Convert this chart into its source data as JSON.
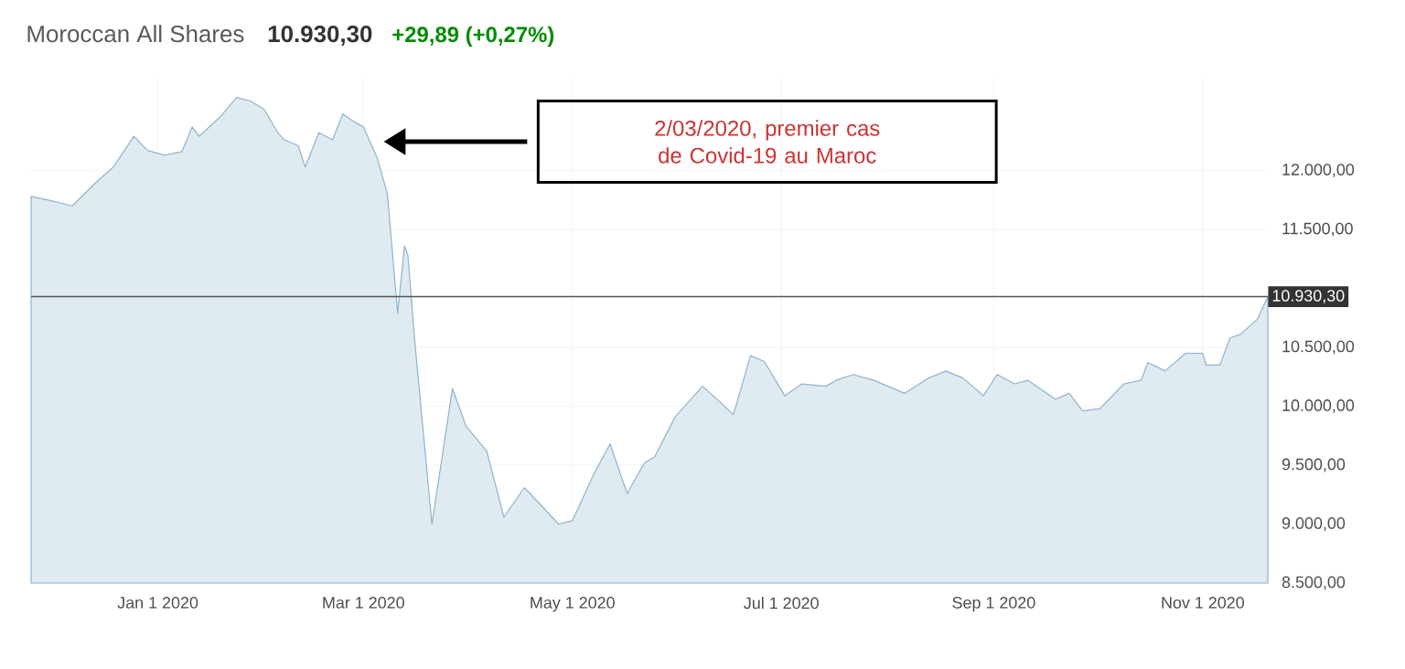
{
  "chart_data": {
    "type": "area",
    "title": "Moroccan All Shares",
    "subtitle": "10.930,30",
    "annotations": [
      "+29,89 (+0,27%)",
      "2/03/2020, premier cas de Covid-19 au Maroc"
    ],
    "x": [
      "2019-11-25",
      "2019-11-30",
      "2019-12-07",
      "2019-12-14",
      "2019-12-19",
      "2019-12-25",
      "2019-12-29",
      "2020-01-03",
      "2020-01-08",
      "2020-01-11",
      "2020-01-13",
      "2020-01-19",
      "2020-01-24",
      "2020-01-28",
      "2020-02-01",
      "2020-02-05",
      "2020-02-07",
      "2020-02-11",
      "2020-02-13",
      "2020-02-17",
      "2020-02-21",
      "2020-02-24",
      "2020-02-27",
      "2020-03-01",
      "2020-03-05",
      "2020-03-08",
      "2020-03-11",
      "2020-03-13",
      "2020-03-14",
      "2020-03-16",
      "2020-03-21",
      "2020-03-27",
      "2020-03-31",
      "2020-04-06",
      "2020-04-11",
      "2020-04-17",
      "2020-04-27",
      "2020-05-01",
      "2020-05-07",
      "2020-05-12",
      "2020-05-17",
      "2020-05-22",
      "2020-05-25",
      "2020-05-31",
      "2020-06-08",
      "2020-06-13",
      "2020-06-17",
      "2020-06-22",
      "2020-06-26",
      "2020-07-02",
      "2020-07-07",
      "2020-07-14",
      "2020-07-17",
      "2020-07-22",
      "2020-07-28",
      "2020-08-06",
      "2020-08-13",
      "2020-08-18",
      "2020-08-23",
      "2020-08-29",
      "2020-09-02",
      "2020-09-07",
      "2020-09-11",
      "2020-09-19",
      "2020-09-23",
      "2020-09-27",
      "2020-10-02",
      "2020-10-09",
      "2020-10-14",
      "2020-10-16",
      "2020-10-21",
      "2020-10-27",
      "2020-11-01",
      "2020-11-02",
      "2020-11-06",
      "2020-11-09",
      "2020-11-12",
      "2020-11-17",
      "2020-11-20"
    ],
    "series": [
      {
        "color": "#8fb3cc",
        "values": [
          11780,
          11750,
          11700,
          11900,
          12030,
          12290,
          12170,
          12130,
          12160,
          12370,
          12290,
          12450,
          12620,
          12590,
          12520,
          12320,
          12260,
          12210,
          12030,
          12320,
          12260,
          12480,
          12420,
          12370,
          12110,
          11800,
          10790,
          11360,
          11280,
          10550,
          9000,
          10150,
          9830,
          9620,
          9060,
          9310,
          9000,
          9030,
          9410,
          9680,
          9260,
          9520,
          9570,
          9910,
          10170,
          10040,
          9930,
          10430,
          10380,
          10090,
          10190,
          10170,
          10220,
          10270,
          10220,
          10110,
          10240,
          10300,
          10240,
          10090,
          10270,
          10190,
          10220,
          10060,
          10110,
          9960,
          9980,
          10190,
          10220,
          10370,
          10300,
          10450,
          10450,
          10350,
          10350,
          10580,
          10610,
          10740,
          10930
        ]
      }
    ],
    "xlim": [
      "2019-11-25",
      "2020-11-20"
    ],
    "ylim": [
      8500,
      12780
    ],
    "xticks": [
      {
        "value": "2020-01-01",
        "label": "Jan 1 2020"
      },
      {
        "value": "2020-03-01",
        "label": "Mar 1 2020"
      },
      {
        "value": "2020-05-01",
        "label": "May 1 2020"
      },
      {
        "value": "2020-07-01",
        "label": "Jul 1 2020"
      },
      {
        "value": "2020-09-01",
        "label": "Sep 1 2020"
      },
      {
        "value": "2020-11-01",
        "label": "Nov 1 2020"
      }
    ],
    "yticks": [
      {
        "value": 8500,
        "label": "8.500,00"
      },
      {
        "value": 9000,
        "label": "9.000,00"
      },
      {
        "value": 9500,
        "label": "9.500,00"
      },
      {
        "value": 10000,
        "label": "10.000,00"
      },
      {
        "value": 10500,
        "label": "10.500,00"
      },
      {
        "value": 11500,
        "label": "11.500,00"
      },
      {
        "value": 12000,
        "label": "12.000,00"
      }
    ],
    "ref_lines": [
      {
        "axis": "y",
        "value": 10930.3,
        "label": "10.930,30",
        "color": "#555555"
      }
    ],
    "grid": true
  }
}
